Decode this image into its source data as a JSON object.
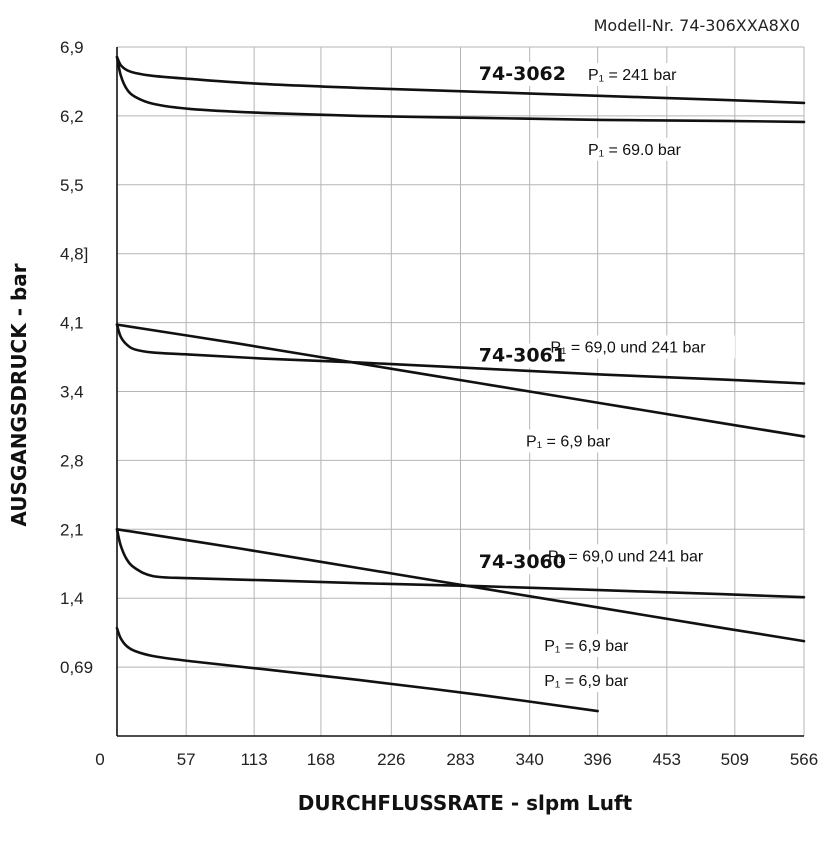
{
  "chart_data": {
    "type": "line",
    "model_number": "Modell-Nr. 74-306XXA8X0",
    "xlabel": "DURCHFLUSSRATE - slpm Luft",
    "ylabel": "AUSGANGSDRUCK - bar",
    "xlim": [
      0,
      566
    ],
    "ylim": [
      0,
      6.9
    ],
    "grid": true,
    "x_ticks": [
      0,
      57,
      113,
      168,
      226,
      283,
      340,
      396,
      453,
      509,
      566
    ],
    "x_tick_labels": [
      "0",
      "57",
      "113",
      "168",
      "226",
      "283",
      "340",
      "396",
      "453",
      "509",
      "566"
    ],
    "y_ticks": [
      0,
      0.69,
      1.38,
      2.07,
      2.76,
      3.45,
      4.14,
      4.83,
      5.52,
      6.21,
      6.9
    ],
    "y_tick_labels": [
      "",
      "0,69",
      "1,4",
      "2,1",
      "2,8",
      "3,4",
      "4,1",
      "4,8]",
      "5,5",
      "6,2",
      "6,9"
    ],
    "groups": [
      {
        "name": "74-3062",
        "label_x": 334,
        "label_y": 6.57
      },
      {
        "name": "74-3061",
        "label_x": 334,
        "label_y": 3.75
      },
      {
        "name": "74-3060",
        "label_x": 334,
        "label_y": 1.68
      }
    ],
    "annotations": [
      {
        "text": "P₁ = 241 bar",
        "x": 388,
        "y": 6.57
      },
      {
        "text": "P₁ = 69.0 bar",
        "x": 388,
        "y": 5.82
      },
      {
        "text": "P₁ = 69,0 und 241 bar",
        "x": 357,
        "y": 3.84
      },
      {
        "text": "P₁ = 6,9 bar",
        "x": 337,
        "y": 2.9
      },
      {
        "text": "P₁ = 69,0 und 241 bar",
        "x": 355,
        "y": 1.75
      },
      {
        "text": "P₁ = 6,9 bar",
        "x": 352,
        "y": 0.85
      },
      {
        "text": "P₁ = 6,9 bar",
        "x": 352,
        "y": 0.5
      }
    ],
    "series": [
      {
        "group": "74-3062",
        "x": [
          0,
          3,
          8,
          15,
          30,
          60,
          120,
          200,
          300,
          400,
          500,
          566
        ],
        "y": [
          6.8,
          6.72,
          6.67,
          6.64,
          6.61,
          6.58,
          6.53,
          6.49,
          6.45,
          6.41,
          6.37,
          6.34
        ]
      },
      {
        "group": "74-3062",
        "x": [
          0,
          3,
          8,
          15,
          30,
          60,
          120,
          200,
          300,
          400,
          500,
          566
        ],
        "y": [
          6.8,
          6.62,
          6.48,
          6.4,
          6.33,
          6.28,
          6.24,
          6.21,
          6.19,
          6.17,
          6.16,
          6.15
        ]
      },
      {
        "group": "74-3061",
        "x": [
          0,
          100,
          200,
          300,
          400,
          500,
          566
        ],
        "y": [
          4.12,
          3.93,
          3.73,
          3.53,
          3.33,
          3.13,
          3.0
        ]
      },
      {
        "group": "74-3061",
        "x": [
          0,
          3,
          8,
          15,
          30,
          60,
          120,
          200,
          300,
          400,
          500,
          566
        ],
        "y": [
          4.12,
          4.0,
          3.92,
          3.87,
          3.84,
          3.82,
          3.78,
          3.74,
          3.68,
          3.62,
          3.57,
          3.53
        ]
      },
      {
        "group": "74-3060",
        "x": [
          0,
          100,
          200,
          300,
          400,
          500,
          566
        ],
        "y": [
          2.07,
          1.88,
          1.68,
          1.48,
          1.28,
          1.08,
          0.95
        ]
      },
      {
        "group": "74-3060",
        "x": [
          0,
          3,
          8,
          15,
          30,
          60,
          120,
          200,
          300,
          400,
          500,
          566
        ],
        "y": [
          2.07,
          1.91,
          1.77,
          1.68,
          1.6,
          1.58,
          1.56,
          1.53,
          1.5,
          1.46,
          1.42,
          1.39
        ]
      },
      {
        "group": "74-3060",
        "x": [
          0,
          3,
          8,
          15,
          30,
          60,
          120,
          200,
          300,
          396
        ],
        "y": [
          1.08,
          0.98,
          0.9,
          0.85,
          0.8,
          0.75,
          0.67,
          0.56,
          0.41,
          0.25
        ]
      }
    ]
  }
}
